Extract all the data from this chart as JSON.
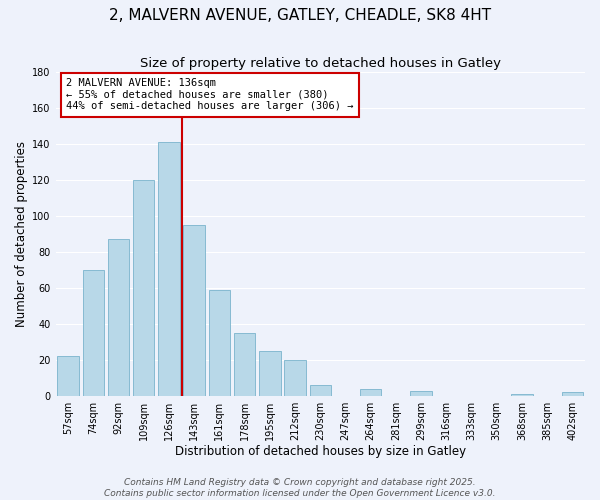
{
  "title": "2, MALVERN AVENUE, GATLEY, CHEADLE, SK8 4HT",
  "subtitle": "Size of property relative to detached houses in Gatley",
  "xlabel": "Distribution of detached houses by size in Gatley",
  "ylabel": "Number of detached properties",
  "bar_labels": [
    "57sqm",
    "74sqm",
    "92sqm",
    "109sqm",
    "126sqm",
    "143sqm",
    "161sqm",
    "178sqm",
    "195sqm",
    "212sqm",
    "230sqm",
    "247sqm",
    "264sqm",
    "281sqm",
    "299sqm",
    "316sqm",
    "333sqm",
    "350sqm",
    "368sqm",
    "385sqm",
    "402sqm"
  ],
  "bar_values": [
    22,
    70,
    87,
    120,
    141,
    95,
    59,
    35,
    25,
    20,
    6,
    0,
    4,
    0,
    3,
    0,
    0,
    0,
    1,
    0,
    2
  ],
  "bar_color": "#b8d8e8",
  "bar_edgecolor": "#7ab4cc",
  "vline_x": 4.5,
  "vline_color": "#cc0000",
  "ylim": [
    0,
    180
  ],
  "yticks": [
    0,
    20,
    40,
    60,
    80,
    100,
    120,
    140,
    160,
    180
  ],
  "annotation_text": "2 MALVERN AVENUE: 136sqm\n← 55% of detached houses are smaller (380)\n44% of semi-detached houses are larger (306) →",
  "annotation_box_color": "#ffffff",
  "annotation_box_edgecolor": "#cc0000",
  "footer1": "Contains HM Land Registry data © Crown copyright and database right 2025.",
  "footer2": "Contains public sector information licensed under the Open Government Licence v3.0.",
  "background_color": "#eef2fb",
  "grid_color": "#ffffff",
  "title_fontsize": 11,
  "subtitle_fontsize": 9.5,
  "axis_label_fontsize": 8.5,
  "tick_fontsize": 7,
  "annotation_fontsize": 7.5,
  "footer_fontsize": 6.5
}
